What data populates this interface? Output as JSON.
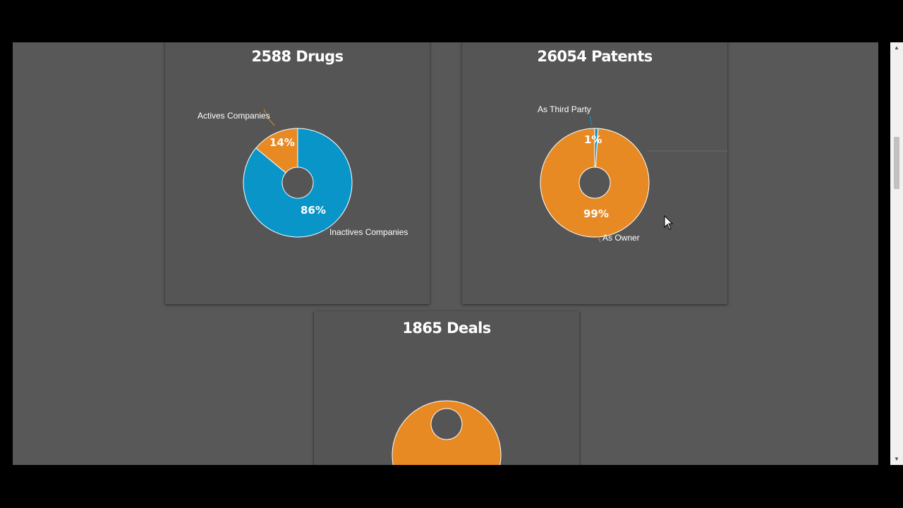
{
  "colors": {
    "blue": "#0a95c9",
    "orange": "#e88a24",
    "card_bg": "#555555",
    "page_bg": "#585858"
  },
  "icons": {
    "cursor": "mouse-pointer-icon",
    "scroll_up": "chevron-up-icon",
    "scroll_down": "chevron-down-icon"
  },
  "chart_data": [
    {
      "type": "pie",
      "title": "2588 Drugs",
      "slices": [
        {
          "label": "Actives Companies",
          "value": 14,
          "display": "14%",
          "color": "#e88a24"
        },
        {
          "label": "Inactives Companies",
          "value": 86,
          "display": "86%",
          "color": "#0a95c9"
        }
      ]
    },
    {
      "type": "pie",
      "title": "26054 Patents",
      "slices": [
        {
          "label": "As Third Party",
          "value": 1,
          "display": "1%",
          "color": "#0a95c9"
        },
        {
          "label": "As Owner",
          "value": 99,
          "display": "99%",
          "color": "#e88a24"
        }
      ]
    },
    {
      "type": "pie",
      "title": "1865 Deals",
      "slices": [
        {
          "label": "",
          "value": 100,
          "display": "",
          "color": "#e88a24"
        }
      ]
    }
  ]
}
